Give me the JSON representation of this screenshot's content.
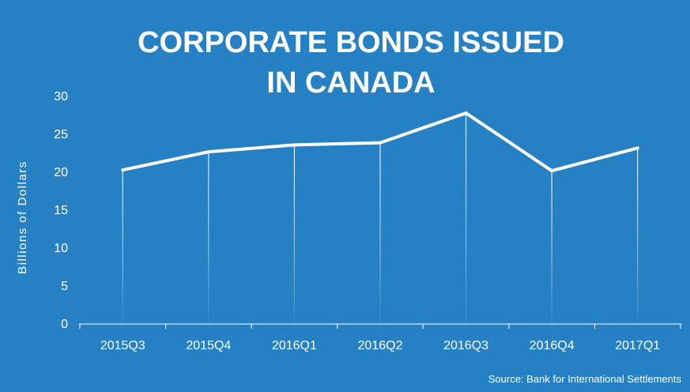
{
  "chart_data": {
    "type": "line",
    "title_lines": [
      "CORPORATE BONDS ISSUED",
      "IN CANADA"
    ],
    "ylabel": "Billions of Dollars",
    "xlabel": "",
    "categories": [
      "2015Q3",
      "2015Q4",
      "2016Q1",
      "2016Q2",
      "2016Q3",
      "2016Q4",
      "2017Q1"
    ],
    "values": [
      20.3,
      22.7,
      23.6,
      23.9,
      27.8,
      20.2,
      23.2
    ],
    "ylim": [
      0,
      30
    ],
    "yticks": [
      0,
      5,
      10,
      15,
      20,
      25,
      30
    ],
    "grid": false,
    "drop_lines": true,
    "source": "Source: Bank for International Settlements",
    "colors": {
      "background": "#2581c4",
      "line": "#ffffff",
      "text": "#ffffff"
    }
  }
}
